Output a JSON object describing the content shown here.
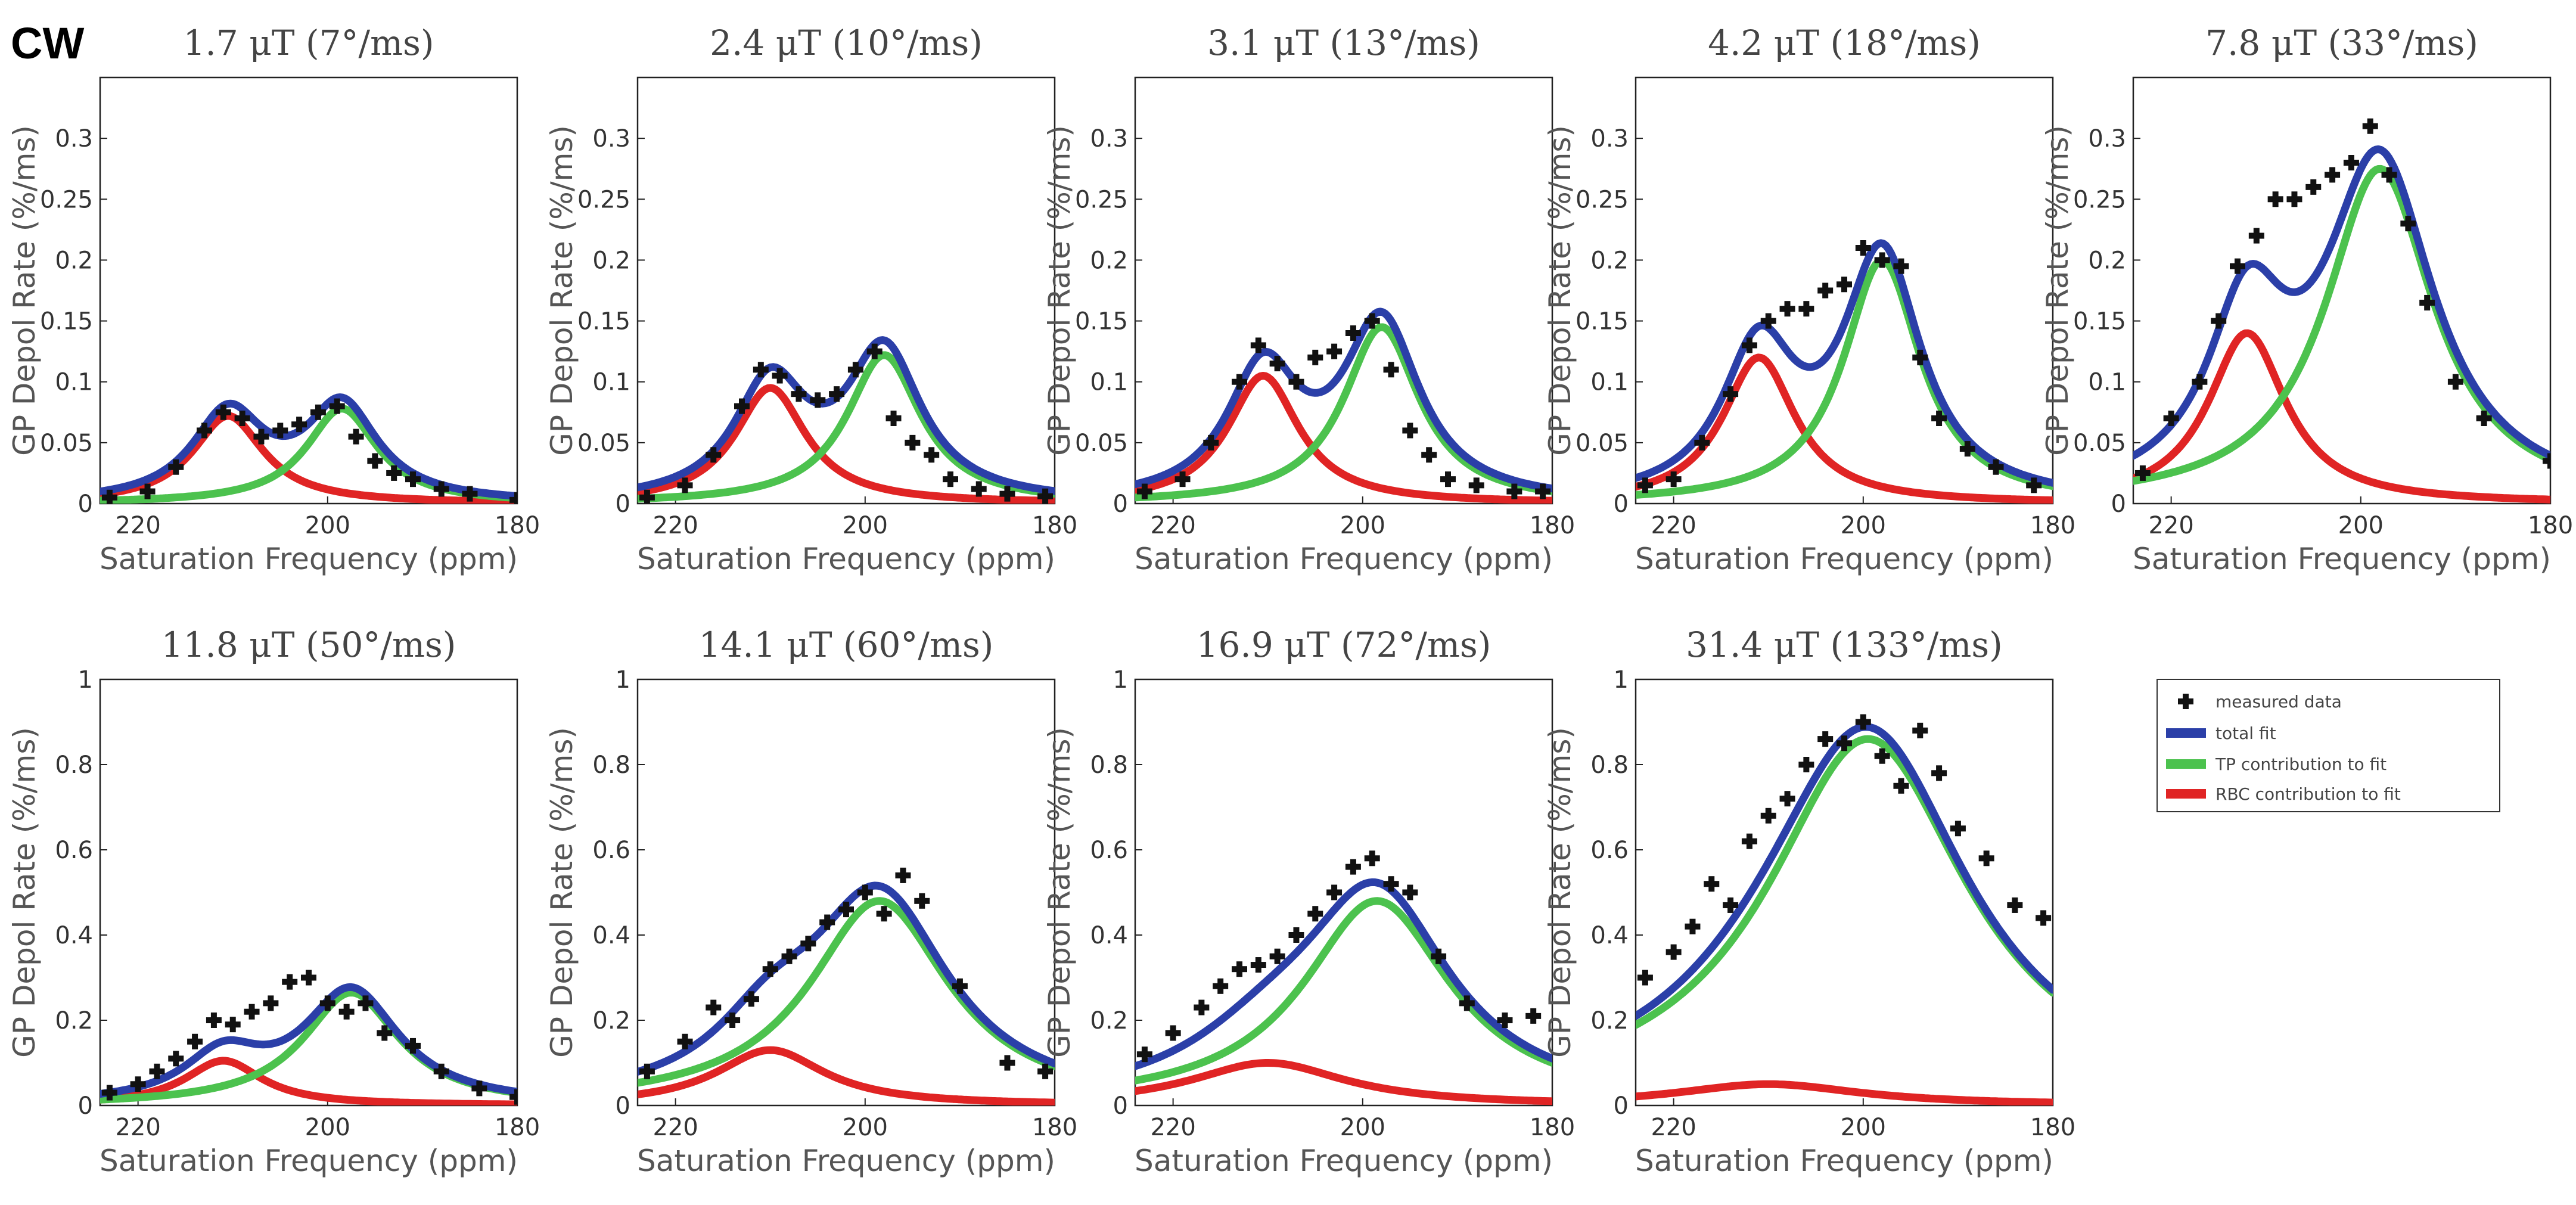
{
  "figure_label": "CW",
  "colors": {
    "total": "#2b3fa8",
    "tp": "#4cc24e",
    "rbc": "#e02424",
    "data": "#111111"
  },
  "legend": {
    "measured": "measured data",
    "total": "total fit",
    "tp": "TP contribution to fit",
    "rbc": "RBC contribution to fit"
  },
  "chart_data": [
    {
      "type": "line",
      "title": "1.7 μT (7°/ms)",
      "xlabel": "Saturation Frequency (ppm)",
      "ylabel": "GP Depol Rate (%/ms)",
      "xlim": [
        224,
        180
      ],
      "ylim": [
        0,
        0.35
      ],
      "yticks": [
        0,
        0.05,
        0.1,
        0.15,
        0.2,
        0.25,
        0.3
      ],
      "ytick_labels": [
        "0",
        "0.05",
        "0.1",
        "0.15",
        "0.2",
        "0.25",
        "0.3"
      ],
      "xticks": [
        220,
        200,
        180
      ],
      "xtick_labels": [
        "220",
        "200",
        "180"
      ],
      "rbc": {
        "amp": 0.072,
        "center": 210.5,
        "width": 4.6
      },
      "tp": {
        "amp": 0.078,
        "center": 198.5,
        "width": 4.6
      },
      "measured_x": [
        223,
        219,
        216,
        213,
        211,
        209,
        207,
        205,
        203,
        201,
        199,
        197,
        195,
        193,
        191,
        188,
        185,
        180
      ],
      "measured_y": [
        0.005,
        0.01,
        0.03,
        0.06,
        0.075,
        0.07,
        0.055,
        0.06,
        0.065,
        0.075,
        0.08,
        0.055,
        0.035,
        0.025,
        0.02,
        0.012,
        0.008,
        0.003
      ]
    },
    {
      "type": "line",
      "title": "2.4 μT (10°/ms)",
      "xlabel": "Saturation Frequency (ppm)",
      "ylabel": "GP Depol Rate (%/ms)",
      "xlim": [
        224,
        180
      ],
      "ylim": [
        0,
        0.35
      ],
      "yticks": [
        0,
        0.05,
        0.1,
        0.15,
        0.2,
        0.25,
        0.3
      ],
      "ytick_labels": [
        "0",
        "0.05",
        "0.1",
        "0.15",
        "0.2",
        "0.25",
        "0.3"
      ],
      "xticks": [
        220,
        200,
        180
      ],
      "xtick_labels": [
        "220",
        "200",
        "180"
      ],
      "rbc": {
        "amp": 0.095,
        "center": 210,
        "width": 4.6
      },
      "tp": {
        "amp": 0.122,
        "center": 198,
        "width": 4.8
      },
      "measured_x": [
        223,
        219,
        216,
        213,
        211,
        209,
        207,
        205,
        203,
        201,
        199,
        197,
        195,
        193,
        191,
        188,
        185,
        181
      ],
      "measured_y": [
        0.005,
        0.015,
        0.04,
        0.08,
        0.11,
        0.105,
        0.09,
        0.085,
        0.09,
        0.11,
        0.125,
        0.07,
        0.05,
        0.04,
        0.02,
        0.012,
        0.008,
        0.006
      ]
    },
    {
      "type": "line",
      "title": "3.1 μT (13°/ms)",
      "xlabel": "Saturation Frequency (ppm)",
      "ylabel": "GP Depol Rate (%/ms)",
      "xlim": [
        224,
        180
      ],
      "ylim": [
        0,
        0.35
      ],
      "yticks": [
        0,
        0.05,
        0.1,
        0.15,
        0.2,
        0.25,
        0.3
      ],
      "ytick_labels": [
        "0",
        "0.05",
        "0.1",
        "0.15",
        "0.2",
        "0.25",
        "0.3"
      ],
      "xticks": [
        220,
        200,
        180
      ],
      "xtick_labels": [
        "220",
        "200",
        "180"
      ],
      "rbc": {
        "amp": 0.105,
        "center": 210.5,
        "width": 4.6
      },
      "tp": {
        "amp": 0.145,
        "center": 198,
        "width": 4.9
      },
      "measured_x": [
        223,
        219,
        216,
        213,
        211,
        209,
        207,
        205,
        203,
        201,
        199,
        197,
        195,
        193,
        191,
        188,
        184,
        181
      ],
      "measured_y": [
        0.01,
        0.02,
        0.05,
        0.1,
        0.13,
        0.115,
        0.1,
        0.12,
        0.125,
        0.14,
        0.15,
        0.11,
        0.06,
        0.04,
        0.02,
        0.015,
        0.01,
        0.01
      ]
    },
    {
      "type": "line",
      "title": "4.2 μT (18°/ms)",
      "xlabel": "Saturation Frequency (ppm)",
      "ylabel": "GP Depol Rate (%/ms)",
      "xlim": [
        224,
        180
      ],
      "ylim": [
        0,
        0.35
      ],
      "yticks": [
        0,
        0.05,
        0.1,
        0.15,
        0.2,
        0.25,
        0.3
      ],
      "ytick_labels": [
        "0",
        "0.05",
        "0.1",
        "0.15",
        "0.2",
        "0.25",
        "0.3"
      ],
      "xticks": [
        220,
        200,
        180
      ],
      "xtick_labels": [
        "220",
        "200",
        "180"
      ],
      "rbc": {
        "amp": 0.12,
        "center": 211,
        "width": 4.7
      },
      "tp": {
        "amp": 0.2,
        "center": 198,
        "width": 5.0
      },
      "measured_x": [
        223,
        220,
        217,
        214,
        212,
        210,
        208,
        206,
        204,
        202,
        200,
        198,
        196,
        194,
        192,
        189,
        186,
        182
      ],
      "measured_y": [
        0.015,
        0.02,
        0.05,
        0.09,
        0.13,
        0.15,
        0.16,
        0.16,
        0.175,
        0.18,
        0.21,
        0.2,
        0.195,
        0.12,
        0.07,
        0.045,
        0.03,
        0.015
      ]
    },
    {
      "type": "line",
      "title": "7.8 μT (33°/ms)",
      "xlabel": "Saturation Frequency (ppm)",
      "ylabel": "GP Depol Rate (%/ms)",
      "xlim": [
        224,
        180
      ],
      "ylim": [
        0,
        0.35
      ],
      "yticks": [
        0,
        0.05,
        0.1,
        0.15,
        0.2,
        0.25,
        0.3
      ],
      "ytick_labels": [
        "0",
        "0.05",
        "0.1",
        "0.15",
        "0.2",
        "0.25",
        "0.3"
      ],
      "xticks": [
        220,
        200,
        180
      ],
      "xtick_labels": [
        "220",
        "200",
        "180"
      ],
      "rbc": {
        "amp": 0.14,
        "center": 212,
        "width": 5.0
      },
      "tp": {
        "amp": 0.275,
        "center": 198,
        "width": 7.0
      },
      "measured_x": [
        223,
        220,
        217,
        215,
        213,
        211,
        209,
        207,
        205,
        203,
        201,
        199,
        197,
        195,
        193,
        190,
        187,
        180
      ],
      "measured_y": [
        0.025,
        0.07,
        0.1,
        0.15,
        0.195,
        0.22,
        0.25,
        0.25,
        0.26,
        0.27,
        0.28,
        0.31,
        0.27,
        0.23,
        0.165,
        0.1,
        0.07,
        0.035
      ]
    },
    {
      "type": "line",
      "title": "11.8 μT (50°/ms)",
      "xlabel": "Saturation Frequency (ppm)",
      "ylabel": "GP Depol Rate (%/ms)",
      "xlim": [
        224,
        180
      ],
      "ylim": [
        0,
        1
      ],
      "yticks": [
        0,
        0.2,
        0.4,
        0.6,
        0.8,
        1
      ],
      "ytick_labels": [
        "0",
        "0.2",
        "0.4",
        "0.6",
        "0.8",
        "1"
      ],
      "xticks": [
        220,
        200,
        180
      ],
      "xtick_labels": [
        "220",
        "200",
        "180"
      ],
      "rbc": {
        "amp": 0.105,
        "center": 211,
        "width": 5.0
      },
      "tp": {
        "amp": 0.265,
        "center": 197.5,
        "width": 6.2
      },
      "measured_x": [
        223,
        220,
        218,
        216,
        214,
        212,
        210,
        208,
        206,
        204,
        202,
        200,
        198,
        196,
        194,
        191,
        188,
        184,
        180
      ],
      "measured_y": [
        0.03,
        0.05,
        0.08,
        0.11,
        0.15,
        0.2,
        0.19,
        0.22,
        0.24,
        0.29,
        0.3,
        0.24,
        0.22,
        0.24,
        0.17,
        0.14,
        0.08,
        0.04,
        0.02
      ]
    },
    {
      "type": "line",
      "title": "14.1 μT (60°/ms)",
      "xlabel": "Saturation Frequency (ppm)",
      "ylabel": "GP Depol Rate (%/ms)",
      "xlim": [
        224,
        180
      ],
      "ylim": [
        0,
        1
      ],
      "yticks": [
        0,
        0.2,
        0.4,
        0.6,
        0.8,
        1
      ],
      "ytick_labels": [
        "0",
        "0.2",
        "0.4",
        "0.6",
        "0.8",
        "1"
      ],
      "xticks": [
        220,
        200,
        180
      ],
      "xtick_labels": [
        "220",
        "200",
        "180"
      ],
      "rbc": {
        "amp": 0.13,
        "center": 210,
        "width": 7.0
      },
      "tp": {
        "amp": 0.48,
        "center": 198.5,
        "width": 9.0
      },
      "measured_x": [
        223,
        219,
        216,
        214,
        212,
        210,
        208,
        206,
        204,
        202,
        200,
        198,
        196,
        194,
        190,
        185,
        181
      ],
      "measured_y": [
        0.08,
        0.15,
        0.23,
        0.2,
        0.25,
        0.32,
        0.35,
        0.38,
        0.43,
        0.46,
        0.5,
        0.45,
        0.54,
        0.48,
        0.28,
        0.1,
        0.08
      ]
    },
    {
      "type": "line",
      "title": "16.9 μT (72°/ms)",
      "xlabel": "Saturation Frequency (ppm)",
      "ylabel": "GP Depol Rate (%/ms)",
      "xlim": [
        224,
        180
      ],
      "ylim": [
        0,
        1
      ],
      "yticks": [
        0,
        0.2,
        0.4,
        0.6,
        0.8,
        1
      ],
      "ytick_labels": [
        "0",
        "0.2",
        "0.4",
        "0.6",
        "0.8",
        "1"
      ],
      "xticks": [
        220,
        200,
        180
      ],
      "xtick_labels": [
        "220",
        "200",
        "180"
      ],
      "rbc": {
        "amp": 0.1,
        "center": 210,
        "width": 10.0
      },
      "tp": {
        "amp": 0.48,
        "center": 198.5,
        "width": 9.5
      },
      "measured_x": [
        223,
        220,
        217,
        215,
        213,
        211,
        209,
        207,
        205,
        203,
        201,
        199,
        197,
        195,
        192,
        189,
        185,
        182
      ],
      "measured_y": [
        0.12,
        0.17,
        0.23,
        0.28,
        0.32,
        0.33,
        0.35,
        0.4,
        0.45,
        0.5,
        0.56,
        0.58,
        0.52,
        0.5,
        0.35,
        0.24,
        0.2,
        0.21
      ]
    },
    {
      "type": "line",
      "title": "31.4 μT (133°/ms)",
      "xlabel": "Saturation Frequency (ppm)",
      "ylabel": "GP Depol Rate (%/ms)",
      "xlim": [
        224,
        180
      ],
      "ylim": [
        0,
        1
      ],
      "yticks": [
        0,
        0.2,
        0.4,
        0.6,
        0.8,
        1
      ],
      "ytick_labels": [
        "0",
        "0.2",
        "0.4",
        "0.6",
        "0.8",
        "1"
      ],
      "xticks": [
        220,
        200,
        180
      ],
      "xtick_labels": [
        "220",
        "200",
        "180"
      ],
      "rbc": {
        "amp": 0.05,
        "center": 210,
        "width": 12.0
      },
      "tp": {
        "amp": 0.86,
        "center": 199.5,
        "width": 13.0
      },
      "measured_x": [
        223,
        220,
        218,
        216,
        214,
        212,
        210,
        208,
        206,
        204,
        202,
        200,
        198,
        196,
        194,
        192,
        190,
        187,
        184,
        181
      ],
      "measured_y": [
        0.3,
        0.36,
        0.42,
        0.52,
        0.47,
        0.62,
        0.68,
        0.72,
        0.8,
        0.86,
        0.85,
        0.9,
        0.82,
        0.75,
        0.88,
        0.78,
        0.65,
        0.58,
        0.47,
        0.44
      ]
    }
  ]
}
